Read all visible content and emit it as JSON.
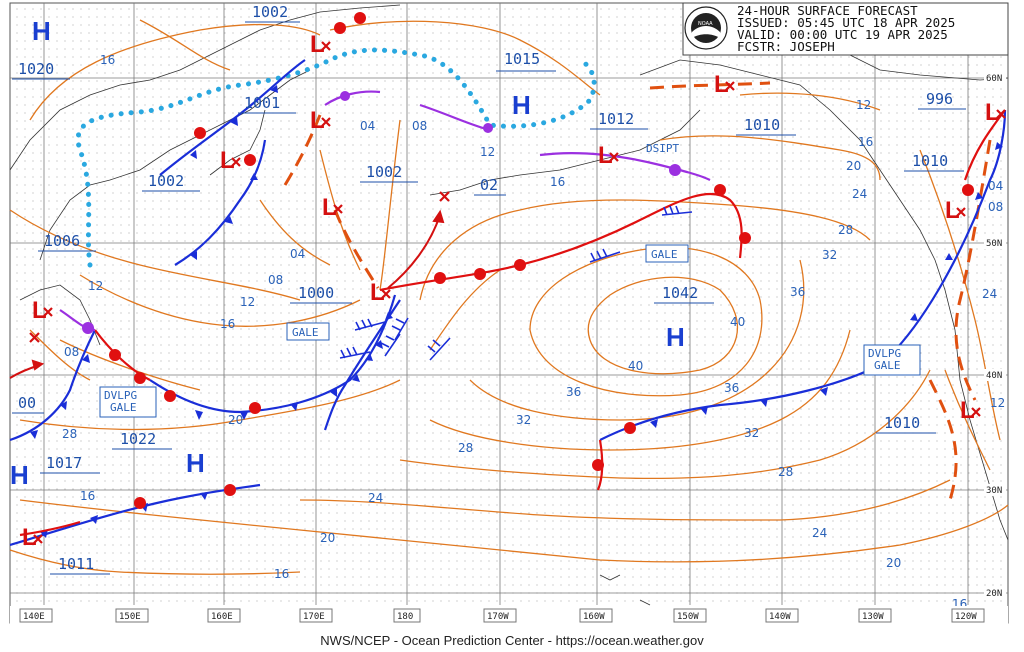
{
  "header": {
    "line1": "24-HOUR SURFACE FORECAST",
    "line2": "ISSUED: 05:45 UTC 18 APR 2025",
    "line3": "VALID:  00:00 UTC 19 APR 2025",
    "line4": "FCSTR:  JOSEPH",
    "logo_text": "NOAA"
  },
  "footer": "NWS/NCEP - Ocean Prediction Center - https://ocean.weather.gov",
  "lon_labels": [
    "140E",
    "150E",
    "160E",
    "170E",
    "180",
    "170W",
    "160W",
    "150W",
    "140W",
    "130W",
    "120W"
  ],
  "lat_labels": [
    "60N",
    "50N",
    "40N",
    "30N",
    "20N"
  ],
  "pressure_labels": [
    "1002",
    "1020",
    "1001",
    "1002",
    "1006",
    "1002",
    "02",
    "1015",
    "1012",
    "1010",
    "996",
    "1010",
    "1000",
    "1042",
    "1010",
    "1022",
    "1017",
    "1011",
    "00"
  ],
  "isobar_labels": [
    "16",
    "04",
    "08",
    "12",
    "16",
    "12",
    "20",
    "24",
    "28",
    "32",
    "36",
    "08",
    "04",
    "12",
    "16",
    "20",
    "40",
    "40",
    "36",
    "32",
    "28",
    "24",
    "20",
    "16",
    "16",
    "08",
    "04",
    "12",
    "16",
    "32",
    "36",
    "28",
    "24",
    "20",
    "16",
    "12",
    "08",
    "28",
    "24"
  ],
  "high_symbol": "H",
  "low_symbol": "L",
  "text_boxes": [
    "GALE",
    "GALE",
    "DVLPG GALE",
    "DVLPG GALE"
  ],
  "dsipt_label": "DSIPT",
  "colors": {
    "cold_front": "#1a2ed8",
    "warm_front": "#e01010",
    "occluded": "#9b30e0",
    "isobar": "#e07820",
    "label": "#2a62b8",
    "ridge": "#2aa8e0",
    "trough": "#e05010"
  }
}
